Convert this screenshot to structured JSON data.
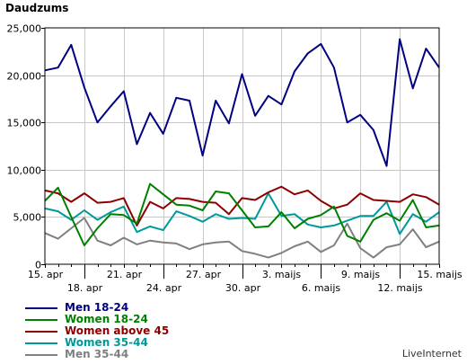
{
  "chart_data": {
    "type": "line",
    "ylabel": "Daudzums",
    "ylim": [
      0,
      25000
    ],
    "yticks": [
      0,
      5000,
      10000,
      15000,
      20000,
      25000
    ],
    "ytick_labels": [
      "0",
      "5,000",
      "10,000",
      "15,000",
      "20,000",
      "25,000"
    ],
    "grid": true,
    "legend_position": "bottom-left",
    "x": [
      "15. apr",
      "16. apr",
      "17. apr",
      "18. apr",
      "19. apr",
      "20. apr",
      "21. apr",
      "22. apr",
      "23. apr",
      "24. apr",
      "25. apr",
      "26. apr",
      "27. apr",
      "28. apr",
      "29. apr",
      "30. apr",
      "1. maijs",
      "2. maijs",
      "3. maijs",
      "4. maijs",
      "5. maijs",
      "6. maijs",
      "7. maijs",
      "8. maijs",
      "9. maijs",
      "10. maijs",
      "11. maijs",
      "12. maijs",
      "13. maijs",
      "14. maijs",
      "15. maijs"
    ],
    "xtick_labels": [
      {
        "index": 0,
        "label": "15. apr",
        "row": 1
      },
      {
        "index": 3,
        "label": "18. apr",
        "row": 2
      },
      {
        "index": 6,
        "label": "21. apr",
        "row": 1
      },
      {
        "index": 9,
        "label": "24. apr",
        "row": 2
      },
      {
        "index": 12,
        "label": "27. apr",
        "row": 1
      },
      {
        "index": 15,
        "label": "30. apr",
        "row": 2
      },
      {
        "index": 18,
        "label": "3. maijs",
        "row": 1
      },
      {
        "index": 21,
        "label": "6. maijs",
        "row": 2
      },
      {
        "index": 24,
        "label": "9. maijs",
        "row": 1
      },
      {
        "index": 27,
        "label": "12. maijs",
        "row": 2
      },
      {
        "index": 30,
        "label": "15. maijs",
        "row": 1
      }
    ],
    "series": [
      {
        "name": "Men 18-24",
        "color": "#000080",
        "values": [
          20500,
          20800,
          23200,
          18700,
          15000,
          16700,
          18300,
          12700,
          16000,
          13800,
          17600,
          17300,
          11500,
          17300,
          14900,
          20100,
          15700,
          17800,
          16900,
          20400,
          22300,
          23300,
          20800,
          15000,
          15800,
          14200,
          10400,
          23800,
          18600,
          22800,
          20800
        ]
      },
      {
        "name": "Women 18-24",
        "color": "#008000",
        "values": [
          6700,
          8100,
          5000,
          2000,
          3800,
          5300,
          5200,
          4300,
          8500,
          7400,
          6300,
          6200,
          5700,
          7700,
          7500,
          5700,
          3900,
          4000,
          5500,
          3800,
          4800,
          5200,
          6100,
          3000,
          2400,
          4700,
          5400,
          4600,
          6800,
          3900,
          4100
        ]
      },
      {
        "name": "Women above 45",
        "color": "#8b0000",
        "values": [
          7800,
          7500,
          6600,
          7500,
          6500,
          6600,
          7000,
          4100,
          6600,
          5900,
          7000,
          6900,
          6600,
          6500,
          5300,
          7000,
          6800,
          7600,
          8200,
          7400,
          7800,
          6700,
          5900,
          6300,
          7500,
          6800,
          6700,
          6600,
          7400,
          7100,
          6300
        ]
      },
      {
        "name": "Women 35-44",
        "color": "#009999",
        "values": [
          5900,
          5600,
          4700,
          5700,
          4700,
          5500,
          6100,
          3400,
          4000,
          3600,
          5600,
          5100,
          4500,
          5300,
          4800,
          4900,
          4800,
          7500,
          5100,
          5300,
          4200,
          3900,
          4100,
          4600,
          5100,
          5100,
          6600,
          3200,
          5300,
          4500,
          5500
        ]
      },
      {
        "name": "Men 35-44",
        "color": "#808080",
        "values": [
          3300,
          2700,
          3800,
          4900,
          2500,
          2000,
          2800,
          2100,
          2500,
          2300,
          2200,
          1600,
          2100,
          2300,
          2400,
          1400,
          1100,
          700,
          1200,
          1900,
          2400,
          1300,
          2000,
          4300,
          1700,
          700,
          1800,
          2100,
          3700,
          1800,
          2400
        ]
      }
    ]
  },
  "credit": "LiveInternet"
}
